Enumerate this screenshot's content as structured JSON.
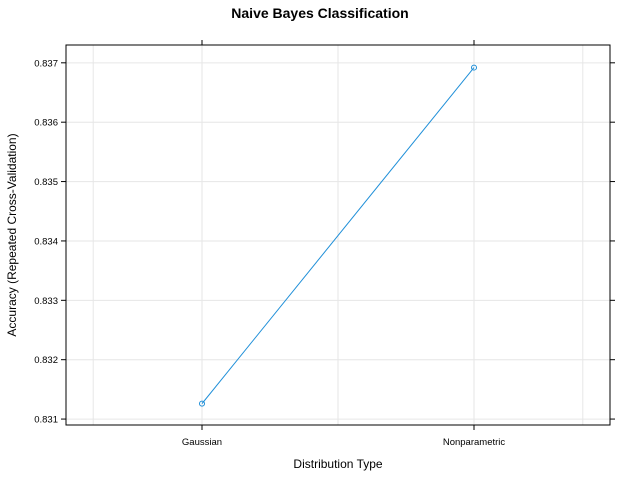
{
  "chart_data": {
    "type": "line",
    "title": "Naive Bayes Classification",
    "xlabel": "Distribution Type",
    "ylabel": "Accuracy (Repeated Cross-Validation)",
    "categories": [
      "Gaussian",
      "Nonparametric"
    ],
    "series": [
      {
        "values": [
          0.83126,
          0.83692
        ],
        "color": "#1f8fd8"
      }
    ],
    "ylim": [
      0.8309,
      0.8373
    ],
    "yticks": [
      "0.831",
      "0.832",
      "0.833",
      "0.834",
      "0.835",
      "0.836",
      "0.837"
    ],
    "grid": true,
    "grid_color": "#e6e6e6"
  }
}
